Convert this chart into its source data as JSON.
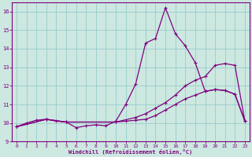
{
  "bg_color": "#cce8e0",
  "line_color": "#800080",
  "grid_color": "#99cccc",
  "xlabel": "Windchill (Refroidissement éolien,°C)",
  "xlabel_color": "#800080",
  "tick_color": "#800080",
  "xlim": [
    -0.5,
    23.5
  ],
  "ylim": [
    9.0,
    16.5
  ],
  "yticks": [
    9,
    10,
    11,
    12,
    13,
    14,
    15,
    16
  ],
  "xticks": [
    0,
    1,
    2,
    3,
    4,
    5,
    6,
    7,
    8,
    9,
    10,
    11,
    12,
    13,
    14,
    15,
    16,
    17,
    18,
    19,
    20,
    21,
    22,
    23
  ],
  "line1_x": [
    0,
    1,
    2,
    3,
    4,
    5,
    6,
    7,
    8,
    9,
    10,
    11,
    12,
    13,
    14,
    15,
    16,
    17,
    18,
    19,
    20,
    21,
    22,
    23
  ],
  "line1_y": [
    9.8,
    10.0,
    10.15,
    10.2,
    10.1,
    10.05,
    9.75,
    9.85,
    9.9,
    9.85,
    10.1,
    11.0,
    12.1,
    14.3,
    14.55,
    16.2,
    14.8,
    14.15,
    13.25,
    11.7,
    11.8,
    11.75,
    11.55,
    10.1
  ],
  "line2_x": [
    0,
    3,
    5,
    10,
    12,
    13,
    14,
    15,
    16,
    17,
    18,
    19,
    20,
    21,
    22,
    23
  ],
  "line2_y": [
    9.8,
    10.2,
    10.05,
    10.05,
    10.3,
    10.5,
    10.8,
    11.1,
    11.5,
    12.0,
    12.3,
    12.5,
    13.1,
    13.2,
    13.1,
    10.1
  ],
  "line3_x": [
    0,
    3,
    5,
    10,
    11,
    12,
    13,
    14,
    15,
    16,
    17,
    18,
    19,
    20,
    21,
    22,
    23
  ],
  "line3_y": [
    9.8,
    10.2,
    10.05,
    10.05,
    10.1,
    10.15,
    10.2,
    10.4,
    10.7,
    11.0,
    11.3,
    11.5,
    11.7,
    11.8,
    11.75,
    11.55,
    10.1
  ]
}
